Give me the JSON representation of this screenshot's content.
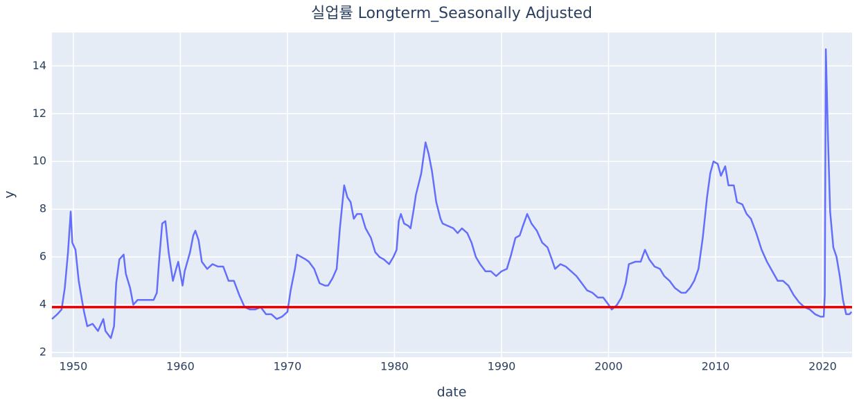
{
  "chart_data": {
    "type": "line",
    "title": "실업률 Longterm_Seasonally Adjusted",
    "x_label": "date",
    "y_label": "y",
    "x": [
      1948.0,
      1948.5,
      1948.9,
      1949.2,
      1949.5,
      1949.75,
      1949.9,
      1950.2,
      1950.5,
      1950.8,
      1951.0,
      1951.3,
      1951.8,
      1952.3,
      1952.8,
      1953.0,
      1953.5,
      1953.8,
      1954.0,
      1954.3,
      1954.7,
      1954.9,
      1955.3,
      1955.6,
      1956.0,
      1956.5,
      1957.0,
      1957.5,
      1957.8,
      1958.0,
      1958.3,
      1958.6,
      1958.9,
      1959.3,
      1959.6,
      1959.8,
      1960.2,
      1960.4,
      1960.9,
      1961.2,
      1961.4,
      1961.7,
      1962.0,
      1962.5,
      1963.0,
      1963.5,
      1964.0,
      1964.5,
      1965.0,
      1965.5,
      1966.0,
      1966.5,
      1967.0,
      1967.5,
      1968.0,
      1968.5,
      1969.0,
      1969.5,
      1970.0,
      1970.3,
      1970.7,
      1970.9,
      1971.3,
      1971.7,
      1972.0,
      1972.5,
      1973.0,
      1973.5,
      1973.8,
      1974.2,
      1974.6,
      1974.9,
      1975.1,
      1975.3,
      1975.6,
      1975.9,
      1976.2,
      1976.5,
      1976.9,
      1977.3,
      1977.8,
      1978.2,
      1978.6,
      1979.0,
      1979.5,
      1979.9,
      1980.2,
      1980.4,
      1980.6,
      1980.9,
      1981.3,
      1981.5,
      1981.8,
      1982.0,
      1982.5,
      1982.9,
      1983.2,
      1983.5,
      1983.9,
      1984.3,
      1984.5,
      1985.0,
      1985.5,
      1985.9,
      1986.3,
      1986.8,
      1987.2,
      1987.6,
      1988.0,
      1988.5,
      1989.0,
      1989.5,
      1990.0,
      1990.5,
      1990.9,
      1991.3,
      1991.7,
      1992.0,
      1992.4,
      1992.8,
      1993.3,
      1993.8,
      1994.3,
      1994.7,
      1995.0,
      1995.5,
      1996.0,
      1996.5,
      1997.0,
      1997.5,
      1998.0,
      1998.5,
      1999.0,
      1999.5,
      2000.0,
      2000.3,
      2000.8,
      2001.2,
      2001.6,
      2001.9,
      2002.5,
      2003.0,
      2003.4,
      2003.8,
      2004.3,
      2004.8,
      2005.2,
      2005.7,
      2006.2,
      2006.8,
      2007.2,
      2007.6,
      2008.0,
      2008.4,
      2008.8,
      2009.2,
      2009.5,
      2009.8,
      2010.2,
      2010.5,
      2010.9,
      2011.2,
      2011.7,
      2012.0,
      2012.5,
      2012.9,
      2013.3,
      2013.8,
      2014.3,
      2014.8,
      2015.3,
      2015.8,
      2016.3,
      2016.8,
      2017.3,
      2017.8,
      2018.3,
      2018.8,
      2019.3,
      2019.8,
      2020.1,
      2020.2,
      2020.3,
      2020.5,
      2020.7,
      2021.0,
      2021.3,
      2021.6,
      2021.9,
      2022.2,
      2022.5,
      2022.7
    ],
    "values": [
      3.4,
      3.6,
      3.8,
      4.7,
      6.2,
      7.9,
      6.6,
      6.3,
      5.0,
      4.2,
      3.7,
      3.1,
      3.2,
      2.9,
      3.4,
      2.9,
      2.6,
      3.1,
      4.9,
      5.9,
      6.1,
      5.3,
      4.7,
      4.0,
      4.2,
      4.2,
      4.2,
      4.2,
      4.5,
      5.8,
      7.4,
      7.5,
      6.2,
      5.0,
      5.5,
      5.8,
      4.8,
      5.4,
      6.2,
      6.9,
      7.1,
      6.7,
      5.8,
      5.5,
      5.7,
      5.6,
      5.6,
      5.0,
      5.0,
      4.4,
      3.9,
      3.8,
      3.8,
      3.9,
      3.6,
      3.6,
      3.4,
      3.5,
      3.7,
      4.6,
      5.5,
      6.1,
      6.0,
      5.9,
      5.8,
      5.5,
      4.9,
      4.8,
      4.8,
      5.1,
      5.5,
      7.2,
      8.1,
      9.0,
      8.5,
      8.3,
      7.6,
      7.8,
      7.8,
      7.2,
      6.8,
      6.2,
      6.0,
      5.9,
      5.7,
      6.0,
      6.3,
      7.5,
      7.8,
      7.4,
      7.3,
      7.2,
      8.0,
      8.6,
      9.5,
      10.8,
      10.3,
      9.6,
      8.3,
      7.6,
      7.4,
      7.3,
      7.2,
      7.0,
      7.2,
      7.0,
      6.6,
      6.0,
      5.7,
      5.4,
      5.4,
      5.2,
      5.4,
      5.5,
      6.1,
      6.8,
      6.9,
      7.3,
      7.8,
      7.4,
      7.1,
      6.6,
      6.4,
      5.9,
      5.5,
      5.7,
      5.6,
      5.4,
      5.2,
      4.9,
      4.6,
      4.5,
      4.3,
      4.3,
      4.0,
      3.8,
      4.0,
      4.3,
      4.9,
      5.7,
      5.8,
      5.8,
      6.3,
      5.9,
      5.6,
      5.5,
      5.2,
      5.0,
      4.7,
      4.5,
      4.5,
      4.7,
      5.0,
      5.5,
      6.8,
      8.5,
      9.5,
      10.0,
      9.9,
      9.4,
      9.8,
      9.0,
      9.0,
      8.3,
      8.2,
      7.8,
      7.6,
      7.0,
      6.3,
      5.8,
      5.4,
      5.0,
      5.0,
      4.8,
      4.4,
      4.1,
      3.9,
      3.8,
      3.6,
      3.5,
      3.5,
      4.4,
      14.7,
      11.0,
      7.9,
      6.4,
      6.0,
      5.2,
      4.2,
      3.6,
      3.6,
      3.7
    ],
    "color": "#636efa",
    "reference_line": {
      "value": 3.9,
      "color": "#e60000"
    },
    "xlim": [
      1948.0,
      2022.75
    ],
    "xticks": [
      1950,
      1960,
      1970,
      1980,
      1990,
      2000,
      2010,
      2020
    ],
    "ylim": [
      1.8,
      15.4
    ],
    "yticks": [
      2,
      4,
      6,
      8,
      10,
      12,
      14
    ],
    "grid": true
  }
}
